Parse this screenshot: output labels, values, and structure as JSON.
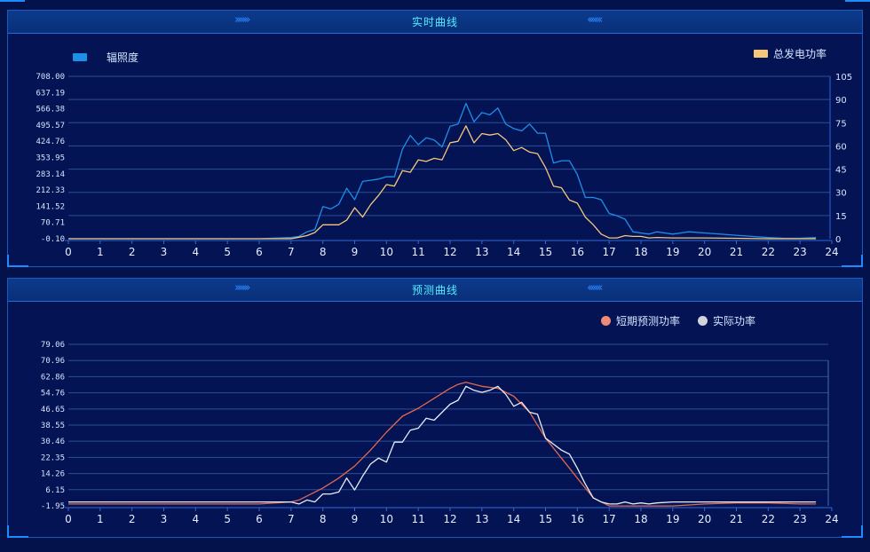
{
  "panels": {
    "top_title": "实时曲线",
    "bottom_title": "预测曲线"
  },
  "chart_data": [
    {
      "type": "line",
      "title": "实时曲线",
      "x_ticks": [
        0,
        1,
        2,
        3,
        4,
        5,
        6,
        7,
        8,
        9,
        10,
        11,
        12,
        13,
        14,
        15,
        16,
        17,
        18,
        19,
        20,
        21,
        22,
        23,
        24
      ],
      "xlim": [
        0,
        24
      ],
      "y_left_ticks": [
        "-0.10",
        "70.71",
        "141.52",
        "212.33",
        "283.14",
        "353.95",
        "424.76",
        "495.57",
        "566.38",
        "637.19",
        "708.00"
      ],
      "y_left_lim": [
        -0.1,
        708.0
      ],
      "y_right_ticks": [
        "0",
        "15",
        "30",
        "45",
        "60",
        "75",
        "90",
        "105"
      ],
      "y_right_lim": [
        0,
        105
      ],
      "legend": {
        "left": "辐照度",
        "right": "总发电功率"
      },
      "series": [
        {
          "name": "辐照度",
          "axis": "left",
          "color": "#1e8fe8",
          "x": [
            0,
            6,
            7,
            7.25,
            7.5,
            7.75,
            8,
            8.25,
            8.5,
            8.75,
            9,
            9.25,
            9.5,
            9.75,
            10,
            10.25,
            10.5,
            10.75,
            11,
            11.25,
            11.5,
            11.75,
            12,
            12.25,
            12.5,
            12.75,
            13,
            13.25,
            13.5,
            13.75,
            14,
            14.25,
            14.5,
            14.75,
            15,
            15.25,
            15.5,
            15.75,
            16,
            16.25,
            16.5,
            16.75,
            17,
            17.25,
            17.5,
            17.75,
            18,
            18.25,
            18.5,
            18.75,
            19,
            19.25,
            19.5,
            20,
            21,
            22,
            22.5,
            23,
            23.5
          ],
          "values": [
            0,
            0,
            5,
            10,
            30,
            40,
            140,
            130,
            150,
            220,
            170,
            250,
            255,
            260,
            270,
            270,
            390,
            450,
            410,
            440,
            430,
            400,
            490,
            500,
            590,
            510,
            550,
            540,
            570,
            500,
            480,
            470,
            500,
            460,
            460,
            330,
            340,
            340,
            280,
            180,
            180,
            170,
            110,
            100,
            85,
            30,
            25,
            20,
            30,
            25,
            20,
            25,
            30,
            25,
            15,
            5,
            2,
            2,
            5
          ]
        },
        {
          "name": "总发电功率",
          "axis": "right",
          "color": "#f6c77a",
          "x": [
            0,
            6,
            7,
            7.25,
            7.5,
            7.75,
            8,
            8.25,
            8.5,
            8.75,
            9,
            9.25,
            9.5,
            9.75,
            10,
            10.25,
            10.5,
            10.75,
            11,
            11.25,
            11.5,
            11.75,
            12,
            12.25,
            12.5,
            12.75,
            13,
            13.25,
            13.5,
            13.75,
            14,
            14.25,
            14.5,
            14.75,
            15,
            15.25,
            15.5,
            15.75,
            16,
            16.25,
            16.5,
            16.75,
            17,
            17.25,
            17.5,
            17.75,
            18,
            18.25,
            18.5,
            19,
            20,
            21,
            22,
            23,
            23.5
          ],
          "values": [
            0,
            0,
            0,
            1,
            2,
            4,
            9,
            9,
            9,
            12,
            20,
            14,
            22,
            28,
            35,
            34,
            44,
            43,
            51,
            50,
            52,
            51,
            62,
            63,
            73,
            62,
            68,
            67,
            68,
            64,
            57,
            59,
            56,
            55,
            46,
            34,
            33,
            25,
            23,
            14,
            9,
            3,
            0.5,
            0.5,
            2,
            1.5,
            1.5,
            0.5,
            0.8,
            0.5,
            0.5,
            0.3,
            0,
            0,
            0
          ]
        }
      ]
    },
    {
      "type": "line",
      "title": "预测曲线",
      "x_ticks": [
        0,
        1,
        2,
        3,
        4,
        5,
        6,
        7,
        8,
        9,
        10,
        11,
        12,
        13,
        14,
        15,
        16,
        17,
        18,
        19,
        20,
        21,
        22,
        23,
        24
      ],
      "xlim": [
        0,
        24
      ],
      "y_ticks": [
        "-1.95",
        "6.15",
        "14.26",
        "22.35",
        "30.46",
        "38.55",
        "46.65",
        "54.76",
        "62.86",
        "70.96",
        "79.06"
      ],
      "ylim": [
        -1.95,
        79.06
      ],
      "legend": [
        "短期预测功率",
        "实际功率"
      ],
      "series": [
        {
          "name": "短期预测功率",
          "color": "#e2684e",
          "x": [
            0,
            6,
            7,
            7.25,
            7.5,
            8,
            8.5,
            9,
            9.5,
            10,
            10.5,
            11,
            11.5,
            12,
            12.25,
            12.5,
            13,
            13.5,
            14,
            14.5,
            15,
            15.5,
            16,
            16.5,
            17,
            17.25,
            18,
            19,
            20,
            21,
            22,
            23,
            23.5
          ],
          "values": [
            -1,
            -1,
            0,
            1,
            3,
            7,
            12,
            18,
            26,
            35,
            43,
            47,
            52,
            57,
            59,
            60,
            58,
            57,
            53,
            45,
            32,
            22,
            12,
            2,
            -2,
            -2,
            -2,
            -2,
            -1,
            -0.5,
            -0.5,
            -1,
            -1
          ]
        },
        {
          "name": "实际功率",
          "color": "#e8eef8",
          "x": [
            0,
            6,
            7,
            7.25,
            7.5,
            7.75,
            8,
            8.25,
            8.5,
            8.75,
            9,
            9.25,
            9.5,
            9.75,
            10,
            10.25,
            10.5,
            10.75,
            11,
            11.25,
            11.5,
            11.75,
            12,
            12.25,
            12.5,
            12.75,
            13,
            13.25,
            13.5,
            13.75,
            14,
            14.25,
            14.5,
            14.75,
            15,
            15.25,
            15.5,
            15.75,
            16,
            16.25,
            16.5,
            16.75,
            17,
            17.25,
            17.5,
            17.75,
            18,
            18.25,
            18.5,
            19,
            20,
            21,
            22,
            23,
            23.5
          ],
          "values": [
            0,
            0,
            0,
            -1,
            1,
            0,
            4,
            4,
            5,
            12,
            6,
            13,
            19,
            22,
            20,
            30,
            30,
            36,
            37,
            42,
            41,
            45,
            49,
            51,
            58,
            56,
            55,
            56,
            58,
            54,
            48,
            50,
            45,
            44,
            32,
            29,
            26,
            24,
            17,
            9,
            2,
            0,
            -1,
            -1,
            0,
            -1,
            -0.5,
            -1,
            -0.5,
            0,
            0,
            0,
            0,
            0,
            0
          ]
        }
      ]
    }
  ]
}
